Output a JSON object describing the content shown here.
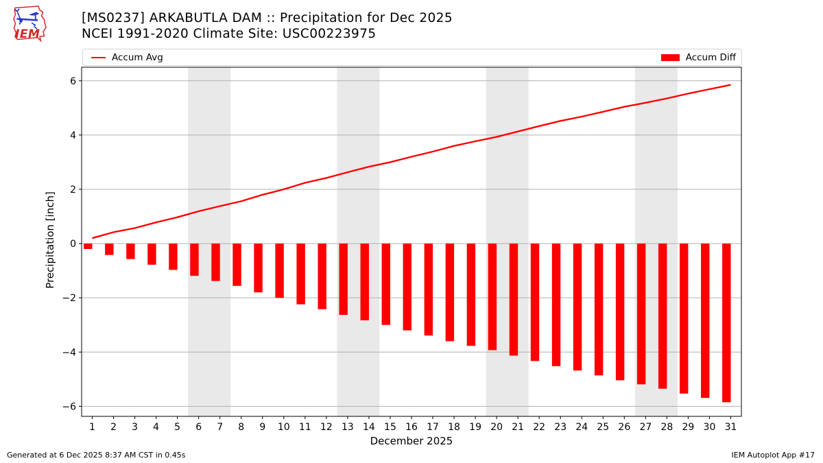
{
  "logo": {
    "text": "IEM"
  },
  "header": {
    "title_line1": "[MS0237] ARKABUTLA DAM :: Precipitation for Dec 2025",
    "title_line2": "NCEI 1991-2020 Climate Site: USC00223975"
  },
  "legend": {
    "line_label": "Accum Avg",
    "bar_label": "Accum Diff"
  },
  "footer": {
    "left": "Generated at 6 Dec 2025 8:37 AM CST in 0.45s",
    "right": "IEM Autoplot App #17"
  },
  "chart_data": {
    "type": "bar",
    "title": "[MS0237] ARKABUTLA DAM :: Precipitation for Dec 2025",
    "subtitle": "NCEI 1991-2020 Climate Site: USC00223975",
    "xlabel": "December 2025",
    "ylabel": "Precipitation [inch]",
    "categories": [
      1,
      2,
      3,
      4,
      5,
      6,
      7,
      8,
      9,
      10,
      11,
      12,
      13,
      14,
      15,
      16,
      17,
      18,
      19,
      20,
      21,
      22,
      23,
      24,
      25,
      26,
      27,
      28,
      29,
      30,
      31
    ],
    "series": [
      {
        "name": "Accum Avg",
        "type": "line",
        "color": "#ff0000",
        "values": [
          0.2,
          0.42,
          0.57,
          0.78,
          0.97,
          1.19,
          1.38,
          1.56,
          1.8,
          2.0,
          2.24,
          2.42,
          2.63,
          2.83,
          3.0,
          3.2,
          3.39,
          3.6,
          3.77,
          3.93,
          4.13,
          4.33,
          4.52,
          4.68,
          4.86,
          5.04,
          5.19,
          5.35,
          5.53,
          5.69,
          5.85
        ]
      },
      {
        "name": "Accum Diff",
        "type": "bar",
        "color": "#ff0000",
        "values": [
          -0.2,
          -0.42,
          -0.57,
          -0.78,
          -0.97,
          -1.19,
          -1.38,
          -1.56,
          -1.8,
          -2.0,
          -2.24,
          -2.42,
          -2.63,
          -2.83,
          -3.0,
          -3.2,
          -3.39,
          -3.6,
          -3.77,
          -3.93,
          -4.13,
          -4.33,
          -4.52,
          -4.68,
          -4.86,
          -5.04,
          -5.19,
          -5.35,
          -5.53,
          -5.69,
          -5.85
        ]
      }
    ],
    "xlim": [
      0.5,
      31.5
    ],
    "ylim": [
      -6.37,
      6.5
    ],
    "yticks": [
      -6,
      -4,
      -2,
      0,
      2,
      4,
      6
    ],
    "grid": "horizontal",
    "gridline_color": "#b0b0b0",
    "shading_color": "#e9e9e9",
    "weekend_shading": [
      [
        5.5,
        7.5
      ],
      [
        12.5,
        14.5
      ],
      [
        19.5,
        21.5
      ],
      [
        26.5,
        28.5
      ]
    ],
    "bar_width": 0.4,
    "legend_position": "top"
  }
}
